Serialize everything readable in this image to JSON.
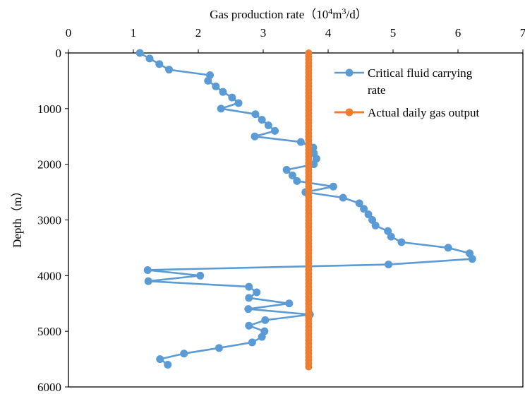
{
  "chart_data": {
    "type": "line",
    "title": "",
    "xlabel": {
      "prefix": "Gas production rate（10",
      "sup1": "4",
      "mid": "m",
      "sup2": "3",
      "suffix": "/d）"
    },
    "ylabel": "Depth（m）",
    "xlim": [
      0,
      7
    ],
    "ylim": [
      0,
      6000
    ],
    "y_inverted": true,
    "x_axis_position": "top",
    "grid": false,
    "legend_position": "top-right",
    "x_ticks": [
      "0",
      "1",
      "2",
      "3",
      "4",
      "5",
      "6",
      "7"
    ],
    "y_ticks": [
      "0",
      "1000",
      "2000",
      "3000",
      "4000",
      "5000",
      "6000"
    ],
    "series": [
      {
        "name": "Critical fluid carrying rate",
        "legend_lines": [
          "Critical fluid carrying",
          "rate"
        ],
        "color": "#5B9BD5",
        "points": [
          [
            1.1,
            0
          ],
          [
            1.25,
            100
          ],
          [
            1.4,
            200
          ],
          [
            1.55,
            300
          ],
          [
            2.18,
            400
          ],
          [
            2.15,
            500
          ],
          [
            2.27,
            600
          ],
          [
            2.38,
            700
          ],
          [
            2.52,
            800
          ],
          [
            2.62,
            900
          ],
          [
            2.35,
            1000
          ],
          [
            2.88,
            1100
          ],
          [
            2.98,
            1200
          ],
          [
            3.08,
            1300
          ],
          [
            3.18,
            1400
          ],
          [
            2.87,
            1500
          ],
          [
            3.58,
            1600
          ],
          [
            3.77,
            1700
          ],
          [
            3.78,
            1800
          ],
          [
            3.82,
            1900
          ],
          [
            3.78,
            2000
          ],
          [
            3.36,
            2100
          ],
          [
            3.45,
            2200
          ],
          [
            3.52,
            2300
          ],
          [
            4.08,
            2400
          ],
          [
            3.65,
            2500
          ],
          [
            4.23,
            2600
          ],
          [
            4.48,
            2700
          ],
          [
            4.55,
            2800
          ],
          [
            4.62,
            2900
          ],
          [
            4.68,
            3000
          ],
          [
            4.73,
            3100
          ],
          [
            4.92,
            3200
          ],
          [
            4.97,
            3300
          ],
          [
            5.13,
            3400
          ],
          [
            5.85,
            3500
          ],
          [
            6.18,
            3600
          ],
          [
            6.22,
            3700
          ],
          [
            4.93,
            3800
          ],
          [
            1.22,
            3900
          ],
          [
            2.03,
            4000
          ],
          [
            1.23,
            4100
          ],
          [
            2.78,
            4200
          ],
          [
            2.9,
            4300
          ],
          [
            2.78,
            4400
          ],
          [
            3.4,
            4500
          ],
          [
            2.77,
            4600
          ],
          [
            3.72,
            4700
          ],
          [
            3.03,
            4800
          ],
          [
            2.78,
            4900
          ],
          [
            3.02,
            5000
          ],
          [
            2.98,
            5100
          ],
          [
            2.83,
            5200
          ],
          [
            2.32,
            5300
          ],
          [
            1.78,
            5400
          ],
          [
            1.41,
            5500
          ],
          [
            1.53,
            5600
          ]
        ]
      },
      {
        "name": "Actual daily gas output",
        "color": "#ED7D31",
        "x_value": 3.7,
        "y_range": [
          0,
          5640
        ],
        "point_step": 60
      }
    ]
  }
}
